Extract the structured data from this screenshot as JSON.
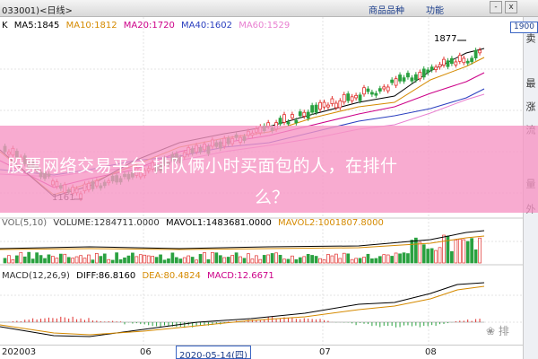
{
  "window": {
    "title": "033001)<日线>",
    "menu": [
      "商品品种",
      "功能"
    ],
    "menu_buttons": [
      "-",
      "x"
    ]
  },
  "price_panel": {
    "label": "K",
    "ma": [
      {
        "text": "MA5:1845",
        "color": "#000000"
      },
      {
        "text": "MA10:1812",
        "color": "#d58a00"
      },
      {
        "text": "MA20:1720",
        "color": "#cc0088"
      },
      {
        "text": "MA40:1602",
        "color": "#2a3fbf"
      },
      {
        "text": "MA60:1529",
        "color": "#e87fd0"
      }
    ],
    "high_label": "1877",
    "low_label": "1161",
    "current_price": "1900"
  },
  "volume_panel": {
    "items": [
      {
        "text": "VOL(5,10)",
        "color": "#666666"
      },
      {
        "text": "VOLUME:1284711.0000",
        "color": "#333333"
      },
      {
        "text": "MAVOL1:1483681.0000",
        "color": "#000000"
      },
      {
        "text": "MAVOL2:1001807.8000",
        "color": "#d58a00"
      }
    ]
  },
  "macd_panel": {
    "items": [
      {
        "text": "MACD(12,26,9)",
        "color": "#333333"
      },
      {
        "text": "DIFF:86.8160",
        "color": "#000000"
      },
      {
        "text": "DEA:80.4824",
        "color": "#d58a00"
      },
      {
        "text": "MACD:12.6671",
        "color": "#cc0088"
      }
    ]
  },
  "xaxis": {
    "labels": [
      "202003",
      "06",
      "07",
      "08"
    ],
    "selected_date": "2020-05-14(四)"
  },
  "sidebar": {
    "buttons": [
      "卖",
      "最",
      "涨",
      "流",
      "量",
      "外"
    ]
  },
  "banner": {
    "line1": "股票网络交易平台 排队俩小时买面包的人，在排什",
    "line2": "么？"
  },
  "watermark": "❀ 排"
}
